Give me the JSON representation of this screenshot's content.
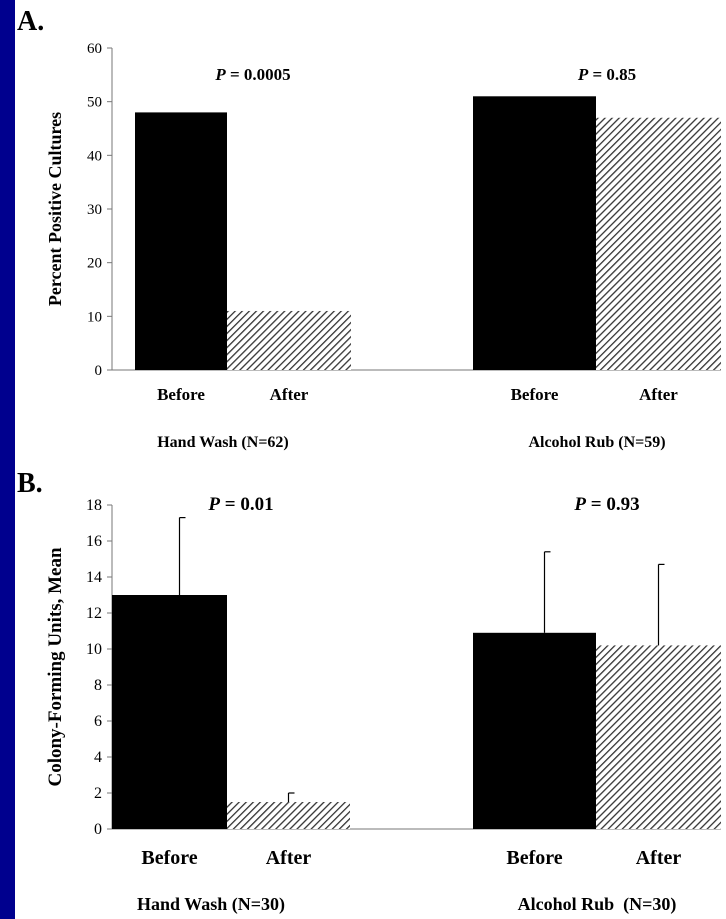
{
  "colors": {
    "background_frame": "#00008e",
    "before_fill": "#000000",
    "after_fill": "hatched-gray"
  },
  "chart_data": [
    {
      "panel_label": "A.",
      "type": "bar",
      "ylabel": "Percent Positive Cultures",
      "ylim": [
        0,
        60
      ],
      "yticks": [
        0,
        10,
        20,
        30,
        40,
        50,
        60
      ],
      "groups": [
        {
          "label": "Hand Wash (N=62)",
          "p_label": "P",
          "p_text": " = 0.0005",
          "bars": [
            {
              "label": "Before",
              "value": 48,
              "style": "solid"
            },
            {
              "label": "After",
              "value": 11,
              "style": "hatched"
            }
          ]
        },
        {
          "label": "Alcohol Rub (N=59)",
          "p_label": "P",
          "p_text": " = 0.85",
          "bars": [
            {
              "label": "Before",
              "value": 51,
              "style": "solid"
            },
            {
              "label": "After",
              "value": 47,
              "style": "hatched"
            }
          ]
        }
      ],
      "grid": false
    },
    {
      "panel_label": "B.",
      "type": "bar",
      "ylabel": "Colony-Forming Units, Mean",
      "ylim": [
        0,
        18
      ],
      "yticks": [
        0,
        2,
        4,
        6,
        8,
        10,
        12,
        14,
        16,
        18
      ],
      "groups": [
        {
          "label": "Hand Wash (N=30)",
          "p_label": "P",
          "p_text": " = 0.01",
          "bars": [
            {
              "label": "Before",
              "value": 13.0,
              "error": 4.3,
              "style": "solid"
            },
            {
              "label": "After",
              "value": 1.5,
              "error": 0.5,
              "style": "hatched"
            }
          ]
        },
        {
          "label": "Alcohol Rub  (N=30)",
          "p_label": "P",
          "p_text": " = 0.93",
          "bars": [
            {
              "label": "Before",
              "value": 10.9,
              "error": 4.5,
              "style": "solid"
            },
            {
              "label": "After",
              "value": 10.2,
              "error": 4.5,
              "style": "hatched"
            }
          ]
        }
      ],
      "grid": false
    }
  ]
}
